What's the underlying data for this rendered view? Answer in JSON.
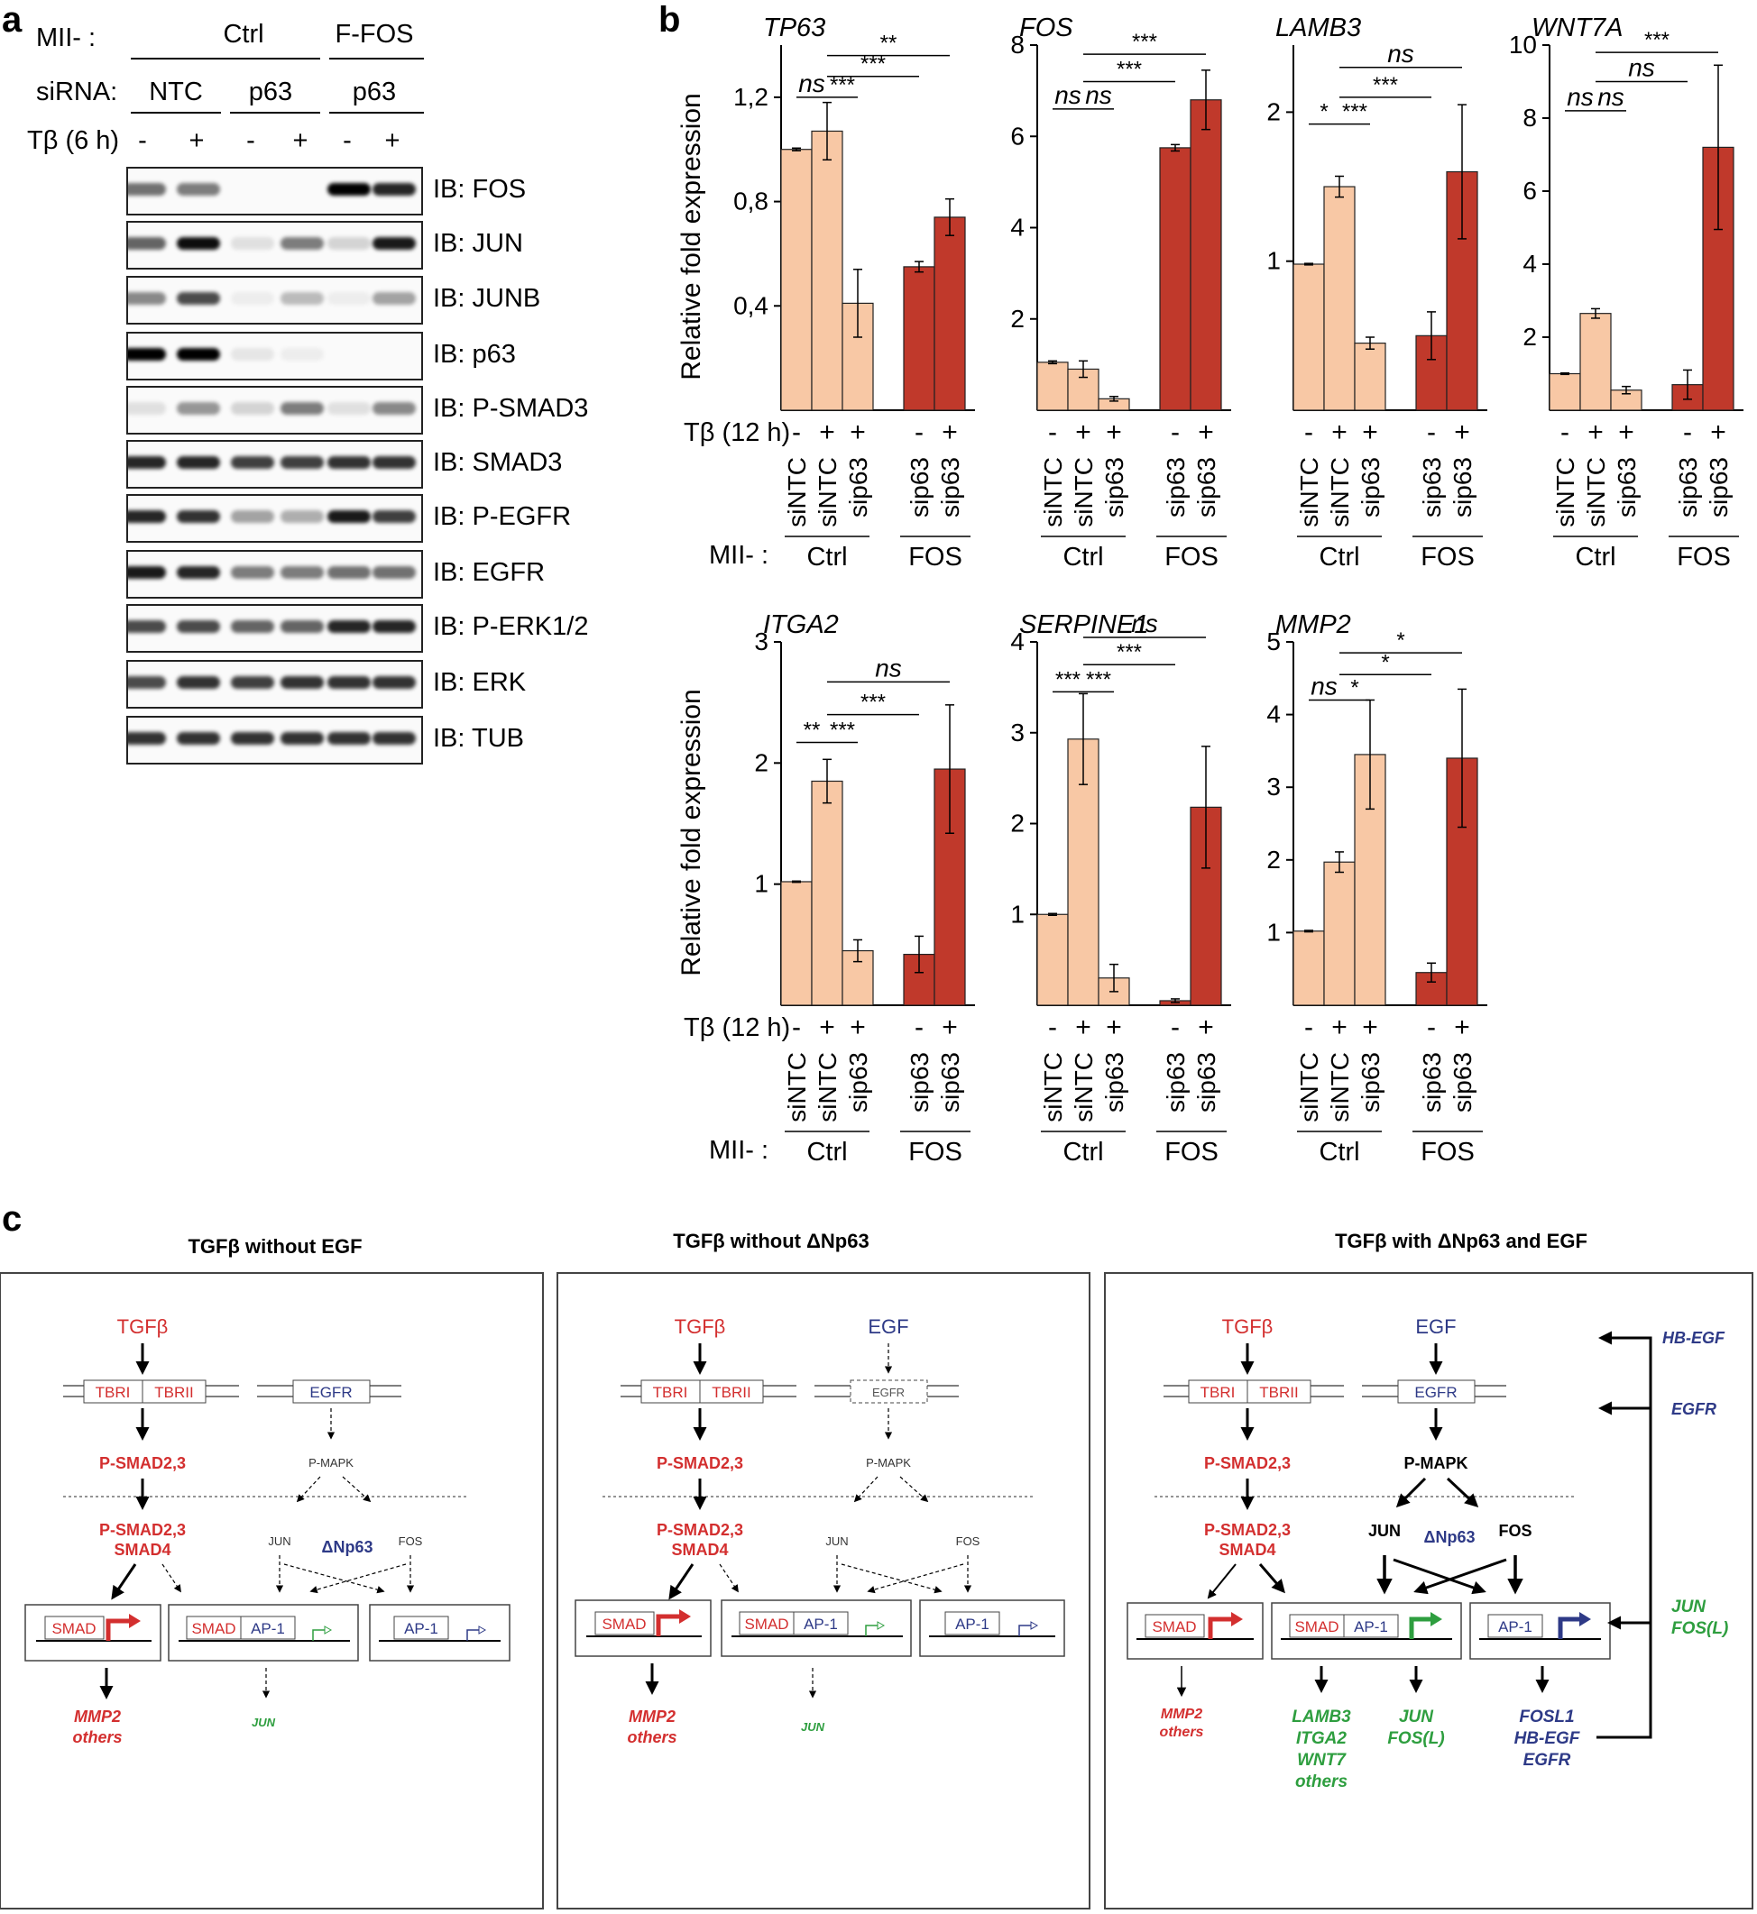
{
  "panels": {
    "a": "a",
    "b": "b",
    "c": "c"
  },
  "panel_a": {
    "mii_label": "MII- :",
    "siRNA_label": "siRNA:",
    "tb_label": "Tβ (6 h)",
    "groups_mii": [
      "Ctrl",
      "F-FOS"
    ],
    "groups_sirna": [
      "NTC",
      "p63",
      "p63"
    ],
    "lanes": [
      "-",
      "+",
      "-",
      "+",
      "-",
      "+"
    ],
    "blots": [
      {
        "label": "IB: FOS",
        "bands": [
          0.55,
          0.5,
          0,
          0,
          1.0,
          0.85
        ]
      },
      {
        "label": "IB: JUN",
        "bands": [
          0.6,
          0.95,
          0.1,
          0.5,
          0.15,
          0.9
        ]
      },
      {
        "label": "IB: JUNB",
        "bands": [
          0.45,
          0.7,
          0.05,
          0.25,
          0.05,
          0.35
        ]
      },
      {
        "label": "IB: p63",
        "bands": [
          1.0,
          1.0,
          0.08,
          0.05,
          0,
          0
        ]
      },
      {
        "label": "IB: P-SMAD3",
        "bands": [
          0.1,
          0.4,
          0.15,
          0.5,
          0.1,
          0.45
        ]
      },
      {
        "label": "IB: SMAD3",
        "bands": [
          0.85,
          0.85,
          0.75,
          0.75,
          0.8,
          0.8
        ]
      },
      {
        "label": "IB: P-EGFR",
        "bands": [
          0.85,
          0.8,
          0.35,
          0.3,
          0.9,
          0.75
        ]
      },
      {
        "label": "IB: EGFR",
        "bands": [
          0.9,
          0.85,
          0.5,
          0.5,
          0.55,
          0.55
        ]
      },
      {
        "label": "IB: P-ERK1/2",
        "bands": [
          0.7,
          0.7,
          0.6,
          0.6,
          0.85,
          0.85
        ]
      },
      {
        "label": "IB: ERK",
        "bands": [
          0.7,
          0.8,
          0.75,
          0.8,
          0.8,
          0.8
        ]
      },
      {
        "label": "IB: TUB",
        "bands": [
          0.8,
          0.8,
          0.8,
          0.8,
          0.8,
          0.8
        ]
      }
    ]
  },
  "chart_data": [
    {
      "type": "bar",
      "title": "TP63",
      "ylabel": "Relative fold expression",
      "ylim": [
        0,
        1.4
      ],
      "yticks": [
        {
          "v": 0.4,
          "t": "0,4"
        },
        {
          "v": 0.8,
          "t": "0,8"
        },
        {
          "v": 1.2,
          "t": "1,2"
        }
      ],
      "values": [
        1.0,
        1.07,
        0.41,
        0.55,
        0.74
      ],
      "errors": [
        0.005,
        0.11,
        0.13,
        0.02,
        0.07
      ],
      "sig": [
        {
          "from": 0,
          "to": 1,
          "label": "ns",
          "y": 1.2
        },
        {
          "from": 1,
          "to": 2,
          "label": "***",
          "y": 1.2
        },
        {
          "from": 1,
          "to": 3,
          "label": "***",
          "y": 1.28
        },
        {
          "from": 1,
          "to": 4,
          "label": "**",
          "y": 1.36
        }
      ]
    },
    {
      "type": "bar",
      "title": "FOS",
      "ylim": [
        0,
        8
      ],
      "yticks": [
        {
          "v": 2,
          "t": "2"
        },
        {
          "v": 4,
          "t": "4"
        },
        {
          "v": 6,
          "t": "6"
        },
        {
          "v": 8,
          "t": "8"
        }
      ],
      "values": [
        1.05,
        0.9,
        0.25,
        5.75,
        6.8
      ],
      "errors": [
        0.03,
        0.18,
        0.05,
        0.07,
        0.65
      ],
      "sig": [
        {
          "from": 0,
          "to": 1,
          "label": "ns",
          "y": 6.6
        },
        {
          "from": 1,
          "to": 2,
          "label": "ns",
          "y": 6.6
        },
        {
          "from": 1,
          "to": 3,
          "label": "***",
          "y": 7.2
        },
        {
          "from": 1,
          "to": 4,
          "label": "***",
          "y": 7.8
        }
      ]
    },
    {
      "type": "bar",
      "title": "LAMB3",
      "ylim": [
        0,
        2.45
      ],
      "yticks": [
        {
          "v": 1,
          "t": "1"
        },
        {
          "v": 2,
          "t": "2"
        }
      ],
      "values": [
        0.98,
        1.5,
        0.45,
        0.5,
        1.6
      ],
      "errors": [
        0.005,
        0.07,
        0.04,
        0.16,
        0.45
      ],
      "sig": [
        {
          "from": 0,
          "to": 1,
          "label": "*",
          "y": 1.92
        },
        {
          "from": 1,
          "to": 2,
          "label": "***",
          "y": 1.92
        },
        {
          "from": 1,
          "to": 3,
          "label": "***",
          "y": 2.1
        },
        {
          "from": 1,
          "to": 4,
          "label": "ns",
          "y": 2.3
        }
      ]
    },
    {
      "type": "bar",
      "title": "WNT7A",
      "ylim": [
        0,
        10
      ],
      "yticks": [
        {
          "v": 2,
          "t": "2"
        },
        {
          "v": 4,
          "t": "4"
        },
        {
          "v": 6,
          "t": "6"
        },
        {
          "v": 8,
          "t": "8"
        },
        {
          "v": 10,
          "t": "10"
        }
      ],
      "values": [
        1.0,
        2.65,
        0.55,
        0.7,
        7.2
      ],
      "errors": [
        0.02,
        0.13,
        0.1,
        0.4,
        2.25
      ],
      "sig": [
        {
          "from": 0,
          "to": 1,
          "label": "ns",
          "y": 8.2
        },
        {
          "from": 1,
          "to": 2,
          "label": "ns",
          "y": 8.2
        },
        {
          "from": 1,
          "to": 3,
          "label": "ns",
          "y": 9.0
        },
        {
          "from": 1,
          "to": 4,
          "label": "***",
          "y": 9.8
        }
      ]
    },
    {
      "type": "bar",
      "title": "ITGA2",
      "ylabel": "Relative fold expression",
      "ylim": [
        0,
        3
      ],
      "yticks": [
        {
          "v": 1,
          "t": "1"
        },
        {
          "v": 2,
          "t": "2"
        },
        {
          "v": 3,
          "t": "3"
        }
      ],
      "values": [
        1.02,
        1.85,
        0.45,
        0.42,
        1.95
      ],
      "errors": [
        0.005,
        0.18,
        0.09,
        0.15,
        0.53
      ],
      "sig": [
        {
          "from": 0,
          "to": 1,
          "label": "**",
          "y": 2.17
        },
        {
          "from": 1,
          "to": 2,
          "label": "***",
          "y": 2.17
        },
        {
          "from": 1,
          "to": 3,
          "label": "***",
          "y": 2.4
        },
        {
          "from": 1,
          "to": 4,
          "label": "ns",
          "y": 2.67
        }
      ]
    },
    {
      "type": "bar",
      "title": "SERPINE1",
      "ylim": [
        0,
        4
      ],
      "yticks": [
        {
          "v": 1,
          "t": "1"
        },
        {
          "v": 2,
          "t": "2"
        },
        {
          "v": 3,
          "t": "3"
        },
        {
          "v": 4,
          "t": "4"
        }
      ],
      "values": [
        1.0,
        2.93,
        0.3,
        0.05,
        2.18
      ],
      "errors": [
        0.01,
        0.5,
        0.15,
        0.02,
        0.67
      ],
      "sig": [
        {
          "from": 0,
          "to": 1,
          "label": "***",
          "y": 3.45
        },
        {
          "from": 1,
          "to": 2,
          "label": "***",
          "y": 3.45
        },
        {
          "from": 1,
          "to": 3,
          "label": "***",
          "y": 3.75
        },
        {
          "from": 1,
          "to": 4,
          "label": "ns",
          "y": 4.05
        }
      ]
    },
    {
      "type": "bar",
      "title": "MMP2",
      "ylim": [
        0,
        5
      ],
      "yticks": [
        {
          "v": 1,
          "t": "1"
        },
        {
          "v": 2,
          "t": "2"
        },
        {
          "v": 3,
          "t": "3"
        },
        {
          "v": 4,
          "t": "4"
        },
        {
          "v": 5,
          "t": "5"
        }
      ],
      "values": [
        1.02,
        1.97,
        3.45,
        0.45,
        3.4
      ],
      "errors": [
        0.01,
        0.14,
        0.75,
        0.13,
        0.95
      ],
      "sig": [
        {
          "from": 0,
          "to": 1,
          "label": "ns",
          "y": 4.2
        },
        {
          "from": 1,
          "to": 2,
          "label": "*",
          "y": 4.2
        },
        {
          "from": 1,
          "to": 3,
          "label": "*",
          "y": 4.55
        },
        {
          "from": 1,
          "to": 4,
          "label": "*",
          "y": 4.85
        }
      ]
    }
  ],
  "panel_b_axis": {
    "tb_label": "Tβ (12 h)",
    "mii_label": "MII- :",
    "signs": [
      "-",
      "+",
      "+",
      "-",
      "+"
    ],
    "sirna": [
      "siNTC",
      "siNTC",
      "sip63",
      "sip63",
      "sip63"
    ],
    "groups": [
      "Ctrl",
      "FOS"
    ]
  },
  "colors": {
    "light_bar": "#f8c8a5",
    "dark_bar": "#c0392b",
    "smad_red": "#d32f2f",
    "ap1_blue": "#2e3a87",
    "target_green": "#2e9e3f"
  },
  "panel_c": {
    "titles": [
      "TGFβ without EGF",
      "TGFβ without ΔNp63",
      "TGFβ with ΔNp63 and EGF"
    ],
    "tgfb": "TGFβ",
    "egf": "EGF",
    "tbri": "TBRI",
    "tbrii": "TBRII",
    "egfr": "EGFR",
    "psmad": "P-SMAD2,3",
    "psmad_smad4_a": "P-SMAD2,3",
    "psmad_smad4_b": "SMAD4",
    "pmapk": "P-MAPK",
    "jun": "JUN",
    "fos": "FOS",
    "dnp63": "ΔNp63",
    "smad_box": "SMAD",
    "ap1_box": "AP-1",
    "out_mmp2": "MMP2",
    "out_others": "others",
    "out_jun": "JUN",
    "out3_green": [
      "LAMB3",
      "ITGA2",
      "WNT7",
      "others"
    ],
    "out3_jun": [
      "JUN",
      "FOS(L)"
    ],
    "out3_blue": [
      "FOSL1",
      "HB-EGF",
      "EGFR"
    ],
    "feedback": [
      "HB-EGF",
      "EGFR",
      "JUN",
      "FOS(L)"
    ]
  }
}
